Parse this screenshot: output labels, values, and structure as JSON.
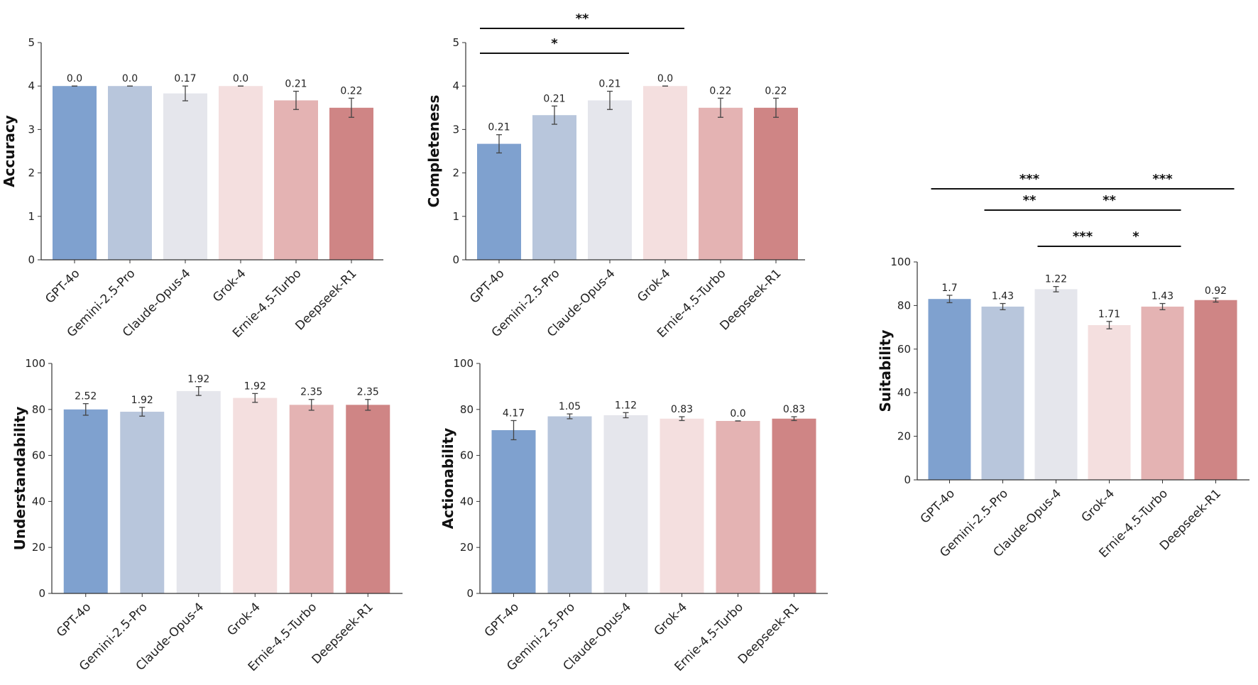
{
  "chart_data": [
    {
      "id": "accuracy",
      "type": "bar",
      "ylabel": "Accuracy",
      "ylim": [
        0,
        5
      ],
      "yticks": [
        0,
        1,
        2,
        3,
        4,
        5
      ],
      "categories": [
        "GPT-4o",
        "Gemini-2.5-Pro",
        "Claude-Opus-4",
        "Grok-4",
        "Ernie-4.5-Turbo",
        "Deepseek-R1"
      ],
      "values": [
        4.0,
        4.0,
        3.83,
        4.0,
        3.67,
        3.5
      ],
      "errors": [
        0.0,
        0.0,
        0.17,
        0.0,
        0.21,
        0.22
      ],
      "value_labels": [
        "0.0",
        "0.0",
        "0.17",
        "0.0",
        "0.21",
        "0.22"
      ],
      "significance": []
    },
    {
      "id": "completeness",
      "type": "bar",
      "ylabel": "Completeness",
      "ylim": [
        0,
        5
      ],
      "yticks": [
        0,
        1,
        2,
        3,
        4,
        5
      ],
      "categories": [
        "GPT-4o",
        "Gemini-2.5-Pro",
        "Claude-Opus-4",
        "Grok-4",
        "Ernie-4.5-Turbo",
        "Deepseek-R1"
      ],
      "values": [
        2.67,
        3.33,
        3.67,
        4.0,
        3.5,
        3.5
      ],
      "errors": [
        0.21,
        0.21,
        0.21,
        0.0,
        0.22,
        0.22
      ],
      "value_labels": [
        "0.21",
        "0.21",
        "0.21",
        "0.0",
        "0.22",
        "0.22"
      ],
      "significance": [
        {
          "from": 0,
          "to": 3,
          "label": "**"
        },
        {
          "from": 0,
          "to": 2,
          "label": "*"
        }
      ]
    },
    {
      "id": "understandability",
      "type": "bar",
      "ylabel": "Understandability",
      "ylim": [
        0,
        100
      ],
      "yticks": [
        0,
        20,
        40,
        60,
        80,
        100
      ],
      "categories": [
        "GPT-4o",
        "Gemini-2.5-Pro",
        "Claude-Opus-4",
        "Grok-4",
        "Ernie-4.5-Turbo",
        "Deepseek-R1"
      ],
      "values": [
        80.0,
        79.0,
        88.0,
        85.0,
        82.0,
        82.0
      ],
      "errors": [
        2.52,
        1.92,
        1.92,
        1.92,
        2.35,
        2.35
      ],
      "value_labels": [
        "2.52",
        "1.92",
        "1.92",
        "1.92",
        "2.35",
        "2.35"
      ],
      "significance": []
    },
    {
      "id": "actionability",
      "type": "bar",
      "ylabel": "Actionability",
      "ylim": [
        0,
        100
      ],
      "yticks": [
        0,
        20,
        40,
        60,
        80,
        100
      ],
      "categories": [
        "GPT-4o",
        "Gemini-2.5-Pro",
        "Claude-Opus-4",
        "Grok-4",
        "Ernie-4.5-Turbo",
        "Deepseek-R1"
      ],
      "values": [
        71.0,
        77.0,
        77.5,
        76.0,
        75.0,
        76.0
      ],
      "errors": [
        4.17,
        1.05,
        1.12,
        0.83,
        0.0,
        0.83
      ],
      "value_labels": [
        "4.17",
        "1.05",
        "1.12",
        "0.83",
        "0.0",
        "0.83"
      ],
      "significance": []
    },
    {
      "id": "suitability",
      "type": "bar",
      "ylabel": "Suitability",
      "ylim": [
        0,
        100
      ],
      "yticks": [
        0,
        20,
        40,
        60,
        80,
        100
      ],
      "categories": [
        "GPT-4o",
        "Gemini-2.5-Pro",
        "Claude-Opus-4",
        "Grok-4",
        "Ernie-4.5-Turbo",
        "Deepseek-R1"
      ],
      "values": [
        83.0,
        79.5,
        87.5,
        71.0,
        79.5,
        82.5
      ],
      "errors": [
        1.7,
        1.43,
        1.22,
        1.71,
        1.43,
        0.92
      ],
      "value_labels": [
        "1.7",
        "1.43",
        "1.22",
        "1.71",
        "1.43",
        "0.92"
      ],
      "significance": [
        {
          "from": 0,
          "to": 3,
          "label": "***"
        },
        {
          "from": 3,
          "to": 5,
          "label": "***"
        },
        {
          "from": 1,
          "to": 2,
          "label": "**"
        },
        {
          "from": 2,
          "to": 4,
          "label": "**"
        },
        {
          "from": 2,
          "to": 3,
          "label": "***"
        },
        {
          "from": 3,
          "to": 4,
          "label": "*"
        }
      ]
    }
  ],
  "colors": [
    "#7fa1cf",
    "#b8c6dc",
    "#e5e6ec",
    "#f4dfdf",
    "#e4b3b3",
    "#cf8585"
  ]
}
